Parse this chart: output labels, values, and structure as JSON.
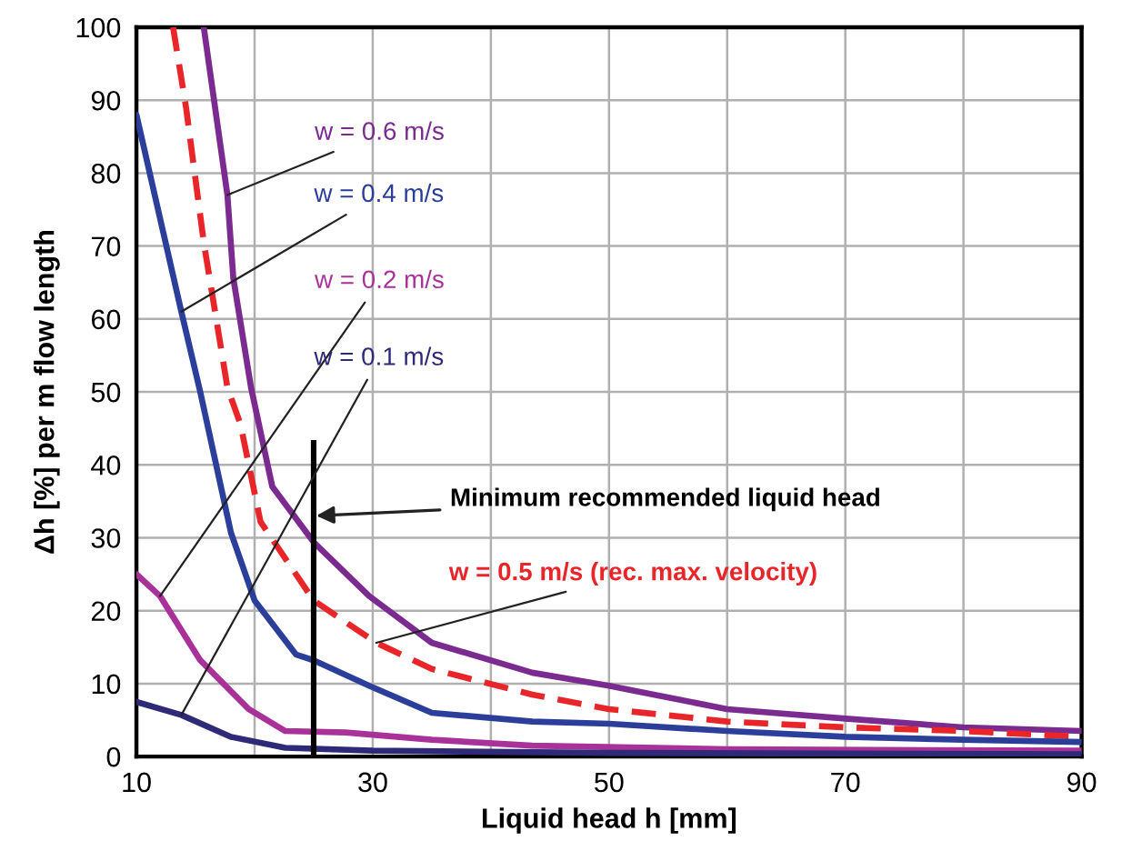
{
  "chart_data": {
    "type": "line",
    "xlabel": "Liquid head h [mm]",
    "ylabel": "Δh [%] per m flow length",
    "xlim": [
      10,
      90
    ],
    "ylim": [
      0,
      100
    ],
    "xticks": [
      10,
      {
        "value": 20,
        "label": null
      },
      30,
      {
        "value": 40,
        "label": null
      },
      50,
      {
        "value": 60,
        "label": null
      },
      70,
      {
        "value": 80,
        "label": null
      },
      90
    ],
    "yticks": [
      0,
      10,
      20,
      30,
      40,
      50,
      60,
      70,
      80,
      90,
      100
    ],
    "grid": true,
    "marker": "none",
    "series": [
      {
        "name": "w = 0.6 m/s",
        "color": "#7b2a8f",
        "line_style": "solid",
        "x": [
          15.7,
          17.7,
          18.2,
          19.7,
          21.5,
          25,
          29.7,
          35,
          43.5,
          50,
          60,
          70,
          80,
          90
        ],
        "values": [
          100,
          77,
          65.6,
          50.6,
          37,
          29.4,
          22,
          15.6,
          11.5,
          9.7,
          6.5,
          5.2,
          4,
          3.5
        ]
      },
      {
        "name": "w = 0.5 m/s (rec. max. velocity)",
        "color": "#e8262a",
        "line_style": "dashed",
        "x": [
          13.1,
          14.2,
          15.7,
          17.7,
          18.8,
          20.5,
          25,
          30.3,
          35,
          43.5,
          50,
          60,
          70,
          80,
          90
        ],
        "values": [
          100,
          89,
          70.5,
          50.6,
          45.6,
          32.2,
          21.4,
          15.6,
          12,
          8.5,
          6.5,
          4.8,
          4,
          3.5,
          2.7
        ]
      },
      {
        "name": "w = 0.4 m/s",
        "color": "#2b3f9a",
        "line_style": "solid",
        "x": [
          10,
          13.8,
          15.4,
          18,
          20,
          23.5,
          25,
          29.7,
          35,
          43.5,
          50,
          60,
          70,
          80,
          90
        ],
        "values": [
          88,
          61,
          50,
          30.7,
          21.4,
          14,
          13.2,
          9.7,
          6,
          4.8,
          4.5,
          3.5,
          2.7,
          2.3,
          2
        ]
      },
      {
        "name": "w = 0.2 m/s",
        "color": "#a8329a",
        "line_style": "solid",
        "x": [
          10,
          12,
          15.4,
          19.5,
          22.6,
          27.7,
          35,
          43.5,
          60,
          90
        ],
        "values": [
          25,
          22,
          13.2,
          6.5,
          3.5,
          3.3,
          2.3,
          1.5,
          1,
          0.8
        ]
      },
      {
        "name": "w = 0.1 m/s",
        "color": "#2e2a78",
        "line_style": "solid",
        "x": [
          10,
          13.8,
          18,
          22.6,
          30,
          50,
          90
        ],
        "values": [
          7.5,
          5.7,
          2.7,
          1.2,
          0.8,
          0.5,
          0.3
        ]
      }
    ],
    "ref_lines": [
      {
        "axis": "x",
        "value": 25,
        "label": "Minimum recommended liquid head",
        "color": "#000000",
        "line_style": "solid"
      }
    ]
  }
}
